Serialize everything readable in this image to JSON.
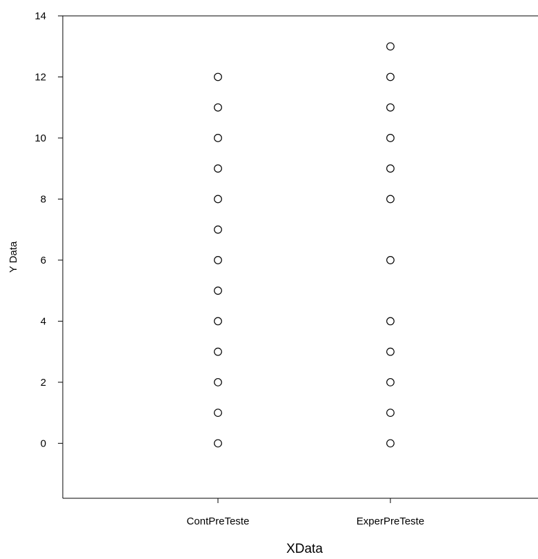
{
  "chart_data": {
    "type": "scatter",
    "xlabel": "XData",
    "ylabel": "Y Data",
    "categories": [
      "ContPreTeste",
      "ExperPreTeste"
    ],
    "ylim": [
      -1.8,
      14
    ],
    "yticks": [
      0,
      2,
      4,
      6,
      8,
      10,
      12,
      14
    ],
    "grid": false,
    "series": [
      {
        "values": [
          0,
          1,
          2,
          3,
          4,
          5,
          6,
          7,
          8,
          9,
          10,
          11,
          12
        ]
      },
      {
        "values": [
          0,
          1,
          2,
          3,
          4,
          6,
          8,
          9,
          10,
          11,
          12,
          13
        ]
      }
    ],
    "marker_color": "#000000"
  }
}
